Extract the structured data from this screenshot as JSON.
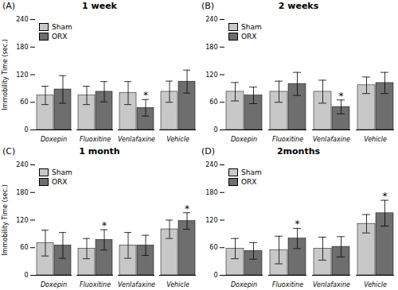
{
  "chart_data": [
    {
      "type": "bar",
      "label": "(A)",
      "title": "1 week",
      "categories": [
        "Doxepin",
        "Fluoxitine",
        "Venlafaxine",
        "Vehicle"
      ],
      "series": [
        {
          "name": "Sham",
          "color": "#c8c8c8",
          "values": [
            75,
            75,
            80,
            83
          ],
          "errors": [
            20,
            20,
            25,
            23
          ]
        },
        {
          "name": "ORX",
          "color": "#6e6e6e",
          "values": [
            88,
            83,
            48,
            105
          ],
          "errors": [
            30,
            22,
            18,
            25
          ]
        }
      ],
      "annotations": [
        {
          "text": "*",
          "category": "Venlafaxine",
          "series": "ORX"
        }
      ],
      "ylim": [
        0,
        240
      ],
      "yticks": [
        0,
        60,
        120,
        180,
        240
      ],
      "ylabel": "Immobility Time (sec.)",
      "legend": "upper left"
    },
    {
      "type": "bar",
      "label": "(B)",
      "title": "2 weeks",
      "categories": [
        "Doxepin",
        "Fluoxitine",
        "Venlafaxine",
        "Vehicle"
      ],
      "series": [
        {
          "name": "Sham",
          "color": "#c8c8c8",
          "values": [
            83,
            83,
            83,
            97
          ],
          "errors": [
            20,
            23,
            25,
            18
          ]
        },
        {
          "name": "ORX",
          "color": "#6e6e6e",
          "values": [
            75,
            100,
            50,
            102
          ],
          "errors": [
            18,
            25,
            15,
            23
          ]
        }
      ],
      "annotations": [
        {
          "text": "*",
          "category": "Venlafaxine",
          "series": "ORX"
        }
      ],
      "ylim": [
        0,
        240
      ],
      "yticks": [
        0,
        60,
        120,
        180,
        240
      ],
      "legend": "upper left"
    },
    {
      "type": "bar",
      "label": "(C)",
      "title": "1 month",
      "categories": [
        "Doxepin",
        "Fluoxitine",
        "Venlafaxine",
        "Vehicle"
      ],
      "series": [
        {
          "name": "Sham",
          "color": "#c8c8c8",
          "values": [
            70,
            58,
            65,
            100
          ],
          "errors": [
            28,
            22,
            28,
            20
          ]
        },
        {
          "name": "ORX",
          "color": "#6e6e6e",
          "values": [
            65,
            77,
            65,
            118
          ],
          "errors": [
            28,
            22,
            22,
            18
          ]
        }
      ],
      "annotations": [
        {
          "text": "*",
          "category": "Fluoxitine",
          "series": "ORX"
        },
        {
          "text": "*",
          "category": "Vehicle",
          "series": "ORX"
        }
      ],
      "ylim": [
        0,
        240
      ],
      "yticks": [
        0,
        60,
        120,
        180,
        240
      ],
      "ylabel": "Immobility Time (sec.)",
      "legend": "upper left"
    },
    {
      "type": "bar",
      "label": "(D)",
      "title": "2months",
      "categories": [
        "Doxepin",
        "Fluoxitine",
        "Venlafaxine",
        "Vehicle"
      ],
      "series": [
        {
          "name": "Sham",
          "color": "#c8c8c8",
          "values": [
            58,
            55,
            58,
            112
          ],
          "errors": [
            22,
            30,
            25,
            20
          ]
        },
        {
          "name": "ORX",
          "color": "#6e6e6e",
          "values": [
            53,
            80,
            62,
            135
          ],
          "errors": [
            18,
            22,
            22,
            28
          ]
        }
      ],
      "annotations": [
        {
          "text": "*",
          "category": "Fluoxitine",
          "series": "ORX"
        },
        {
          "text": "*",
          "category": "Vehicle",
          "series": "ORX"
        }
      ],
      "ylim": [
        0,
        240
      ],
      "yticks": [
        0,
        60,
        120,
        180,
        240
      ],
      "legend": "upper left"
    }
  ]
}
